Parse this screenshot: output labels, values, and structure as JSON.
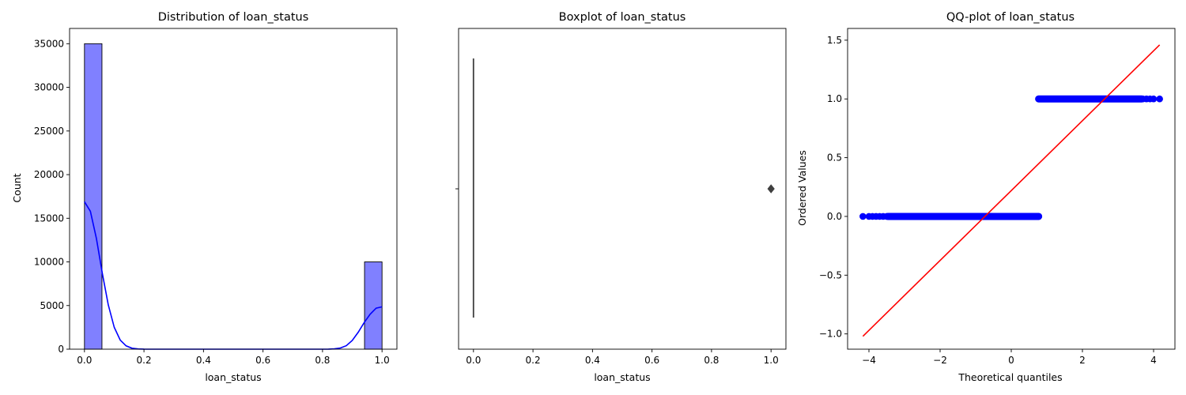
{
  "chart_data": [
    {
      "type": "bar",
      "title": "Distribution of loan_status",
      "xlabel": "loan_status",
      "ylabel": "Count",
      "xlim": [
        -0.05,
        1.05
      ],
      "ylim": [
        0,
        36750
      ],
      "xticks": [
        0.0,
        0.2,
        0.4,
        0.6,
        0.8,
        1.0
      ],
      "yticks": [
        0,
        5000,
        10000,
        15000,
        20000,
        25000,
        30000,
        35000
      ],
      "bins": [
        {
          "x0": 0.0,
          "x1": 0.0588,
          "count": 35000
        },
        {
          "x0": 0.9412,
          "x1": 1.0,
          "count": 10000
        }
      ],
      "kde": {
        "x": [
          0.0,
          0.02,
          0.04,
          0.06,
          0.08,
          0.1,
          0.12,
          0.14,
          0.16,
          0.18,
          0.2,
          0.3,
          0.4,
          0.5,
          0.6,
          0.7,
          0.8,
          0.82,
          0.84,
          0.86,
          0.88,
          0.9,
          0.92,
          0.94,
          0.96,
          0.98,
          1.0
        ],
        "y": [
          16900,
          15800,
          12700,
          8700,
          5100,
          2500,
          1050,
          380,
          110,
          30,
          5,
          0,
          0,
          0,
          0,
          0,
          0,
          10,
          40,
          140,
          400,
          1000,
          1950,
          3050,
          4000,
          4700,
          4850
        ]
      },
      "bar_color": "#8080ff",
      "line_color": "#0000ff"
    },
    {
      "type": "box",
      "title": "Boxplot of loan_status",
      "xlabel": "loan_status",
      "xlim": [
        -0.05,
        1.05
      ],
      "xticks": [
        0.0,
        0.2,
        0.4,
        0.6,
        0.8,
        1.0
      ],
      "q1": 0,
      "median": 0,
      "q3": 0,
      "whisker_low": 0,
      "whisker_high": 0,
      "outliers": [
        1.0
      ]
    },
    {
      "type": "scatter",
      "title": "QQ-plot of loan_status",
      "xlabel": "Theoretical quantiles",
      "ylabel": "Ordered Values",
      "xlim": [
        -4.6,
        4.6
      ],
      "ylim": [
        -1.13,
        1.6
      ],
      "xticks": [
        -4,
        -2,
        0,
        2,
        4
      ],
      "yticks": [
        -1.0,
        -0.5,
        0.0,
        0.5,
        1.0,
        1.5
      ],
      "series": [
        {
          "values": [
            0
          ],
          "x_range": [
            -4.17,
            0.77
          ],
          "points": [
            [
              -4.17,
              0
            ],
            [
              -4.0,
              0
            ],
            [
              -3.9,
              0
            ],
            [
              -3.8,
              0
            ],
            [
              -3.7,
              0
            ],
            [
              -3.6,
              0
            ],
            [
              -3.5,
              0
            ],
            [
              0.77,
              0
            ]
          ]
        },
        {
          "values": [
            1
          ],
          "x_range": [
            0.77,
            4.17
          ],
          "points": [
            [
              0.77,
              1
            ],
            [
              3.7,
              1
            ],
            [
              3.8,
              1
            ],
            [
              3.9,
              1
            ],
            [
              4.0,
              1
            ],
            [
              4.17,
              1
            ]
          ]
        }
      ],
      "fit_line": {
        "x": [
          -4.17,
          4.17
        ],
        "y": [
          -1.02,
          1.46
        ]
      },
      "point_color": "#0000ff",
      "line_color": "#ff0000"
    }
  ]
}
